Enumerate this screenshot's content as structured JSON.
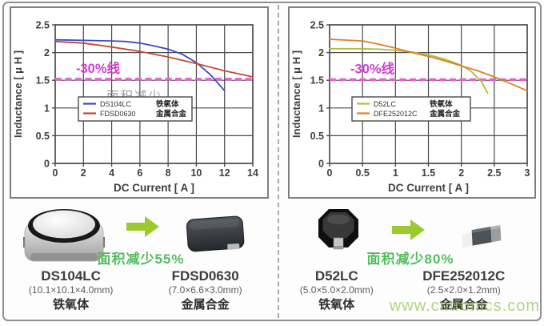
{
  "colors": {
    "threshold_magenta_line": "#ea5ed2",
    "threshold_magenta_label": "#cf3fd1",
    "arrow_green": "#9cc930",
    "note_green": "#53bd5d",
    "watermark_green": "#9ccc65",
    "series_blue": "#3b49c8",
    "series_red": "#c4493a",
    "series_yellow_green": "#b3bb3d",
    "series_orange": "#d9822b"
  },
  "site_watermark": "www.cntronics.com",
  "chart_data": [
    {
      "type": "line",
      "position": "left",
      "xlabel": "DC Current [ A ]",
      "ylabel": "Inductance [ μ H ]",
      "xlim": [
        0,
        14
      ],
      "ylim": [
        0,
        2.5
      ],
      "xticks": [
        "0",
        "2",
        "4",
        "6",
        "8",
        "10",
        "12",
        "14"
      ],
      "yticks": [
        "0",
        "0.5",
        "1",
        "1.5",
        "2",
        "2.5"
      ],
      "grid": true,
      "legend_position": "inside-center-left",
      "threshold": {
        "value": 1.52,
        "label": "-30%线",
        "line_color": "#ea5ed2",
        "label_color": "#cf3fd1"
      },
      "watermark": "面积减少",
      "series": [
        {
          "name": "DS104LC",
          "material": "铁氧体",
          "color": "#3b49c8",
          "points": [
            [
              0,
              2.23
            ],
            [
              2,
              2.22
            ],
            [
              4,
              2.21
            ],
            [
              5,
              2.2
            ],
            [
              6,
              2.17
            ],
            [
              7,
              2.12
            ],
            [
              8,
              2.06
            ],
            [
              9,
              1.97
            ],
            [
              10,
              1.82
            ],
            [
              11,
              1.6
            ],
            [
              12,
              1.31
            ]
          ]
        },
        {
          "name": "FDSD0630",
          "material": "金属合金",
          "color": "#c4493a",
          "points": [
            [
              0,
              2.2
            ],
            [
              2,
              2.17
            ],
            [
              4,
              2.1
            ],
            [
              6,
              2.02
            ],
            [
              8,
              1.92
            ],
            [
              10,
              1.8
            ],
            [
              12,
              1.67
            ],
            [
              14,
              1.56
            ]
          ]
        }
      ]
    },
    {
      "type": "line",
      "position": "right",
      "xlabel": "DC Current [ A ]",
      "ylabel": "Inductance [ μ H ]",
      "xlim": [
        0,
        3
      ],
      "ylim": [
        0,
        2.5
      ],
      "xticks": [
        "0",
        "0.5",
        "1",
        "1.5",
        "2",
        "2.5",
        "3"
      ],
      "yticks": [
        "0",
        "0.5",
        "1",
        "1.5",
        "2",
        "2.5"
      ],
      "grid": true,
      "legend_position": "inside-center-left",
      "threshold": {
        "value": 1.51,
        "label": "-30%线",
        "line_color": "#ea5ed2",
        "label_color": "#cf3fd1"
      },
      "watermark": "",
      "series": [
        {
          "name": "D52LC",
          "material": "铁氧体",
          "color": "#b3bb3d",
          "points": [
            [
              0,
              2.07
            ],
            [
              0.5,
              2.07
            ],
            [
              0.75,
              2.06
            ],
            [
              1,
              2.04
            ],
            [
              1.25,
              2.01
            ],
            [
              1.5,
              1.96
            ],
            [
              1.75,
              1.88
            ],
            [
              2,
              1.77
            ],
            [
              2.15,
              1.66
            ],
            [
              2.3,
              1.48
            ],
            [
              2.4,
              1.27
            ]
          ]
        },
        {
          "name": "DFE252012C",
          "material": "金属合金",
          "color": "#d9822b",
          "points": [
            [
              0,
              2.24
            ],
            [
              0.5,
              2.21
            ],
            [
              0.75,
              2.15
            ],
            [
              1,
              2.08
            ],
            [
              1.25,
              2.0
            ],
            [
              1.5,
              1.93
            ],
            [
              1.75,
              1.85
            ],
            [
              2,
              1.76
            ],
            [
              2.25,
              1.67
            ],
            [
              2.5,
              1.56
            ],
            [
              2.75,
              1.44
            ],
            [
              3,
              1.31
            ]
          ]
        }
      ]
    }
  ],
  "products": [
    {
      "note": "面积减少55%",
      "from": {
        "name": "DS104LC",
        "dims": "(10.1×10.1×4.0mm)",
        "material": "铁氧体",
        "icon": "ferrite-shielded-inductor"
      },
      "to": {
        "name": "FDSD0630",
        "dims": "(7.0×6.6×3.0mm)",
        "material": "金属合金",
        "icon": "metal-alloy-molded-inductor"
      }
    },
    {
      "note": "面积减少80%",
      "from": {
        "name": "D52LC",
        "dims": "(5.0×5.0×2.0mm)",
        "material": "铁氧体",
        "icon": "ferrite-drum-inductor"
      },
      "to": {
        "name": "DFE252012C",
        "dims": "(2.5×2.0×1.2mm)",
        "material": "金属合金",
        "icon": "metal-alloy-chip-inductor"
      }
    }
  ]
}
